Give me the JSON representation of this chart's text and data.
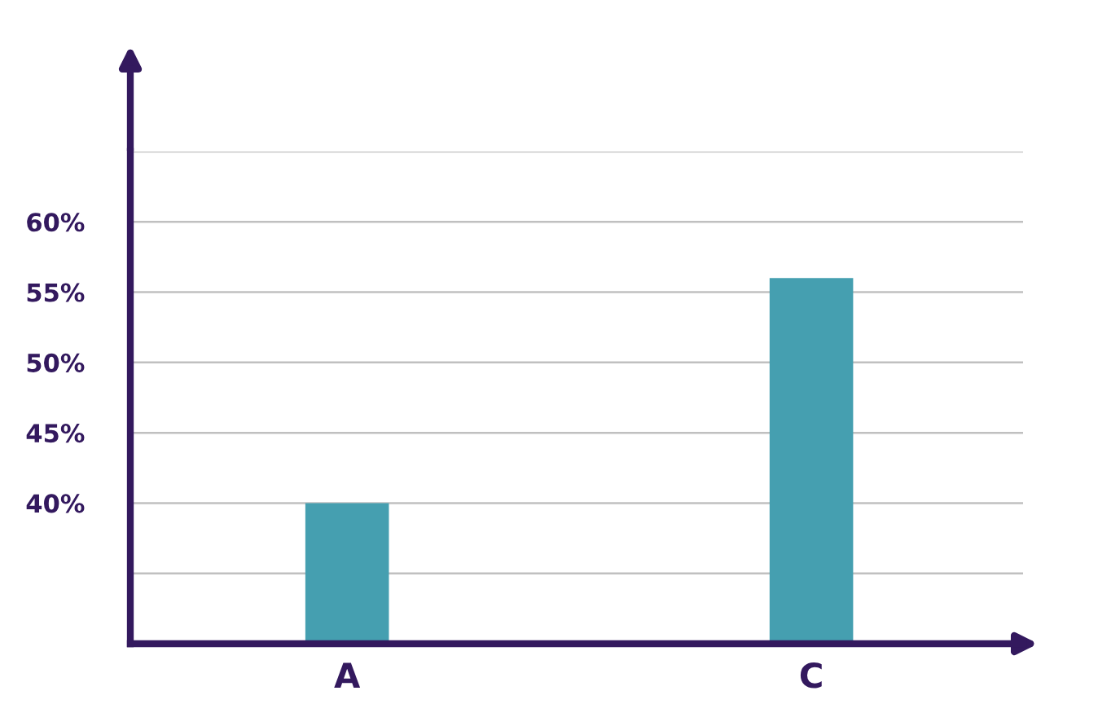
{
  "chart_data": {
    "type": "bar",
    "categories": [
      "A",
      "C"
    ],
    "values": [
      40,
      56
    ],
    "color": "#459fb0",
    "ylim": [
      30,
      65
    ],
    "yticks": [
      {
        "value": 35,
        "label": null
      },
      {
        "value": 40,
        "label": "40%"
      },
      {
        "value": 45,
        "label": "45%"
      },
      {
        "value": 50,
        "label": "50%"
      },
      {
        "value": 55,
        "label": "55%"
      },
      {
        "value": 60,
        "label": "60%"
      },
      {
        "value": 65,
        "label": null
      }
    ],
    "grid": "y"
  }
}
